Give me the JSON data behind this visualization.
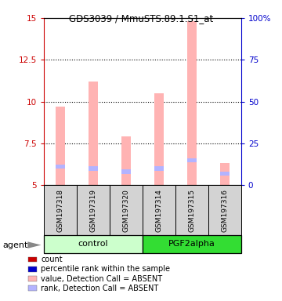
{
  "title": "GDS3039 / MmuSTS.89.1.S1_at",
  "samples": [
    "GSM197318",
    "GSM197319",
    "GSM197320",
    "GSM197314",
    "GSM197315",
    "GSM197316"
  ],
  "groups": [
    "control",
    "control",
    "control",
    "PGF2alpha",
    "PGF2alpha",
    "PGF2alpha"
  ],
  "ylim_left": [
    5,
    15
  ],
  "ylim_right": [
    0,
    100
  ],
  "yticks_left": [
    5,
    7.5,
    10,
    12.5,
    15
  ],
  "yticks_right": [
    0,
    25,
    50,
    75,
    100
  ],
  "yticklabels_left": [
    "5",
    "7.5",
    "10",
    "12.5",
    "15"
  ],
  "yticklabels_right": [
    "0",
    "25",
    "50",
    "75",
    "100%"
  ],
  "bar_values": [
    9.7,
    11.2,
    7.9,
    10.5,
    14.8,
    6.3
  ],
  "rank_values": [
    6.1,
    6.0,
    5.8,
    6.0,
    6.5,
    5.7
  ],
  "bar_bottom": 5.0,
  "bar_width": 0.3,
  "pink_color": "#ffb3b3",
  "lightblue_color": "#b3b3ff",
  "red_color": "#cc0000",
  "blue_color": "#0000cc",
  "legend_items": [
    {
      "color": "#cc0000",
      "label": "count"
    },
    {
      "color": "#0000cc",
      "label": "percentile rank within the sample"
    },
    {
      "color": "#ffb3b3",
      "label": "value, Detection Call = ABSENT"
    },
    {
      "color": "#b3b3ff",
      "label": "rank, Detection Call = ABSENT"
    }
  ],
  "dotted_yticks": [
    7.5,
    10,
    12.5
  ],
  "left_color": "#cc0000",
  "right_color": "#0000cc",
  "ctrl_color_light": "#ccffcc",
  "ctrl_color_dark": "#33dd33",
  "label_bg": "#d3d3d3"
}
